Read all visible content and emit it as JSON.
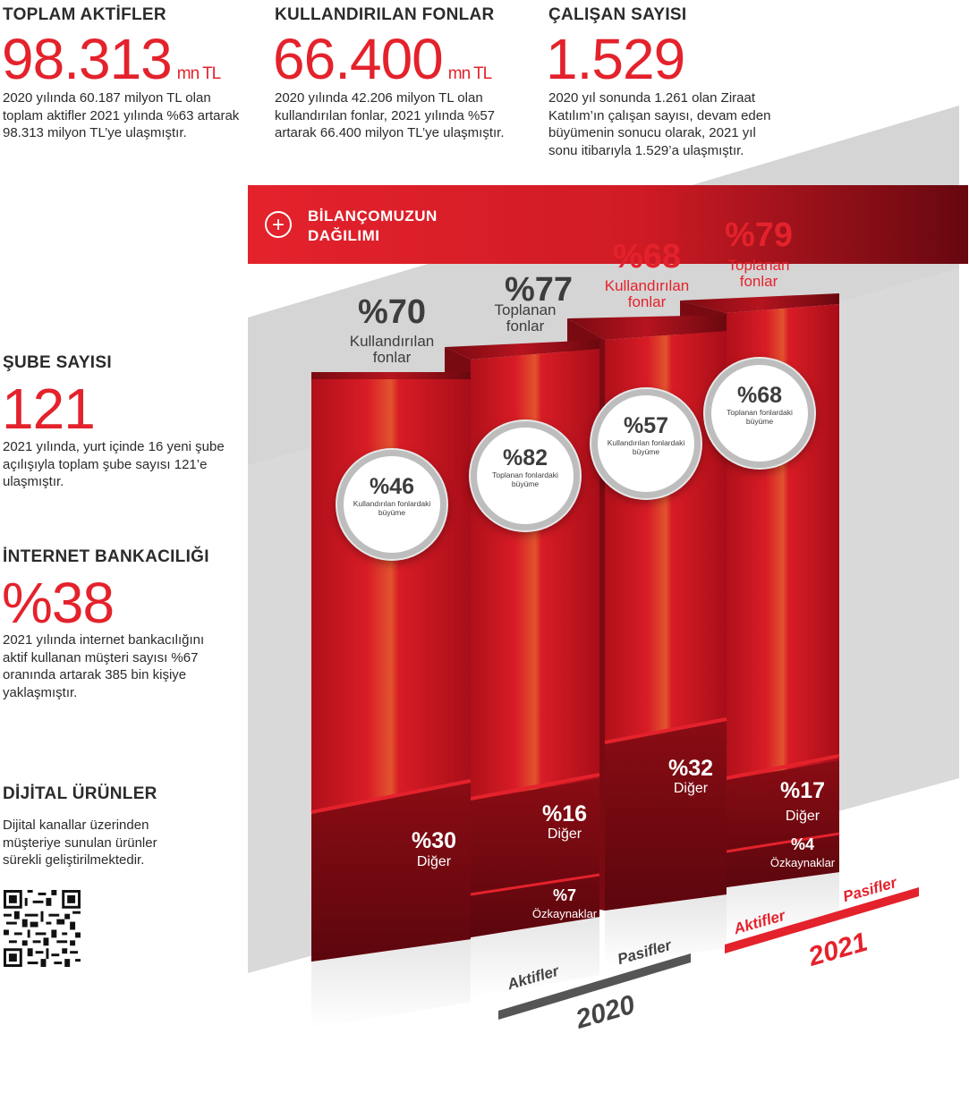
{
  "stats": {
    "total_assets": {
      "title": "TOPLAM AKTİFLER",
      "value": "98.313",
      "unit": "mn TL",
      "desc": "2020 yılında 60.187 milyon TL olan toplam aktifler 2021 yılında %63 artarak 98.313 milyon TL’ye ulaşmıştır."
    },
    "used_funds": {
      "title": "KULLANDIRILAN FONLAR",
      "value": "66.400",
      "unit": "mn TL",
      "desc": "2020 yılında 42.206 milyon TL olan kullandırılan fonlar, 2021 yılında %57 artarak 66.400 milyon TL’ye ulaşmıştır."
    },
    "employees": {
      "title": "ÇALIŞAN SAYISI",
      "value": "1.529",
      "desc": "2020 yıl sonunda 1.261 olan Ziraat Katılım’ın çalışan sayısı, devam eden büyümenin sonucu olarak, 2021 yıl sonu itibarıyla 1.529’a ulaşmıştır."
    },
    "branches": {
      "title": "ŞUBE SAYISI",
      "value": "121",
      "desc": "2021 yılında, yurt içinde 16 yeni şube açılışıyla toplam şube sayısı 121’e ulaşmıştır."
    },
    "internet_banking": {
      "title": "İNTERNET BANKACILIĞI",
      "value": "%38",
      "desc": "2021 yılında internet bankacılığını aktif kullanan müşteri sayısı %67 oranında artarak 385 bin kişiye yaklaşmıştır."
    },
    "digital": {
      "title": "DİJİTAL ÜRÜNLER",
      "desc": "Dijital kanallar üzerinden müşteriye sunulan ürünler sürekli geliştirilmektedir."
    }
  },
  "banner": {
    "title_line1": "BİLANÇOMUZUN",
    "title_line2": "DAĞILIMI",
    "icon": "plus-circle-icon"
  },
  "colors": {
    "accent": "#e4222c",
    "dark_red": "#7a0a12",
    "grey_band": "#d6d6d6",
    "text": "#2b2b2b"
  },
  "chart_data": {
    "type": "bar",
    "title": "BİLANÇOMUZUN DAĞILIMI",
    "categories": [
      "2020 Aktifler",
      "2020 Pasifler",
      "2021 Aktifler",
      "2021 Pasifler"
    ],
    "columns": [
      {
        "year": "2020",
        "side": "Aktifler",
        "main_value": "%70",
        "main_label_1": "Kullandırılan",
        "main_label_2": "fonlar",
        "growth_value": "%46",
        "growth_label": "Kullandırılan fonlardaki büyüme",
        "other_value": "%30",
        "other_label": "Diğer"
      },
      {
        "year": "2020",
        "side": "Pasifler",
        "main_value": "%77",
        "main_label_1": "Toplanan",
        "main_label_2": "fonlar",
        "growth_value": "%82",
        "growth_label": "Toplanan fonlardaki büyüme",
        "other_value": "%16",
        "other_label": "Diğer",
        "equity_value": "%7",
        "equity_label": "Özkaynaklar"
      },
      {
        "year": "2021",
        "side": "Aktifler",
        "main_value": "%68",
        "main_label_1": "Kullandırılan",
        "main_label_2": "fonlar",
        "growth_value": "%57",
        "growth_label": "Kullandırılan fonlardaki büyüme",
        "other_value": "%32",
        "other_label": "Diğer"
      },
      {
        "year": "2021",
        "side": "Pasifler",
        "main_value": "%79",
        "main_label_1": "Toplanan",
        "main_label_2": "fonlar",
        "growth_value": "%68",
        "growth_label": "Toplanan fonlardaki büyüme",
        "other_value": "%17",
        "other_label": "Diğer",
        "equity_value": "%4",
        "equity_label": "Özkaynaklar"
      }
    ],
    "series": [
      {
        "name": "Kullandırılan fonlar / Toplanan fonlar",
        "values": [
          70,
          77,
          68,
          79
        ]
      },
      {
        "name": "Diğer",
        "values": [
          30,
          16,
          32,
          17
        ]
      },
      {
        "name": "Özkaynaklar",
        "values": [
          0,
          7,
          0,
          4
        ]
      }
    ],
    "axis": {
      "y2020": "2020",
      "y2021": "2021",
      "aktifler": "Aktifler",
      "pasifler": "Pasifler"
    }
  },
  "qr": {
    "icon": "qr-code-icon"
  }
}
